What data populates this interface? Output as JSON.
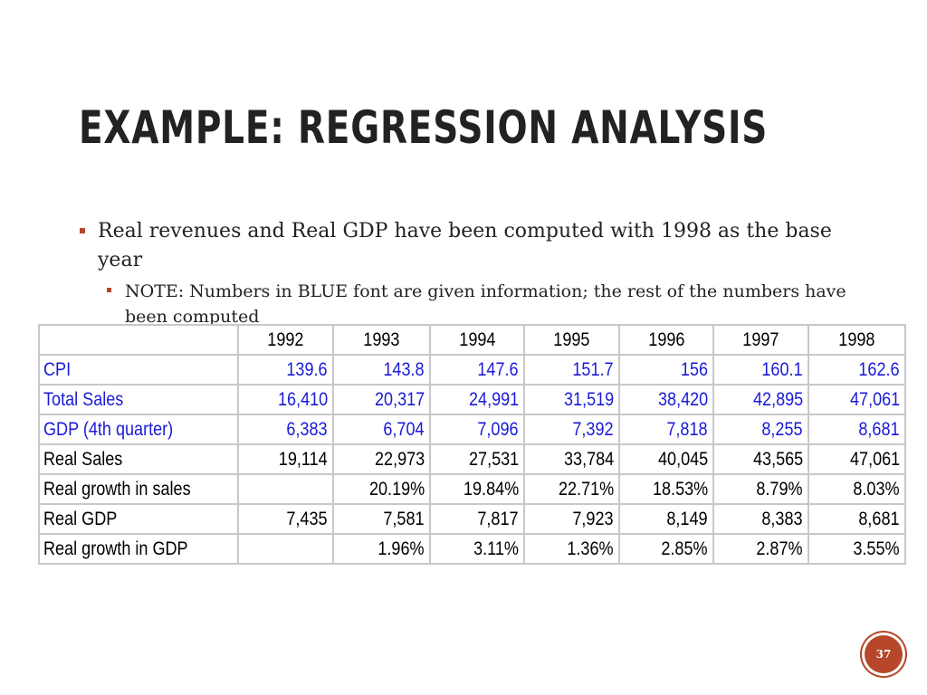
{
  "slide": {
    "title": "EXAMPLE: REGRESSION ANALYSIS",
    "page_number": "37",
    "accent_color": "#b7472a",
    "given_info_color": "#1a1ad8"
  },
  "bullets": {
    "main": "Real revenues and Real GDP have been computed with 1998 as the base year",
    "note": "NOTE: Numbers in BLUE font are given information; the rest of the numbers have been computed"
  },
  "table": {
    "corner": "",
    "years": [
      "1992",
      "1993",
      "1994",
      "1995",
      "1996",
      "1997",
      "1998"
    ],
    "rows": [
      {
        "label": "CPI",
        "given": true,
        "values": [
          "139.6",
          "143.8",
          "147.6",
          "151.7",
          "156",
          "160.1",
          "162.6"
        ]
      },
      {
        "label": "Total Sales",
        "given": true,
        "values": [
          "16,410",
          "20,317",
          "24,991",
          "31,519",
          "38,420",
          "42,895",
          "47,061"
        ]
      },
      {
        "label": "GDP (4th quarter)",
        "given": true,
        "values": [
          "6,383",
          "6,704",
          "7,096",
          "7,392",
          "7,818",
          "8,255",
          "8,681"
        ]
      },
      {
        "label": "Real Sales",
        "given": false,
        "values": [
          "19,114",
          "22,973",
          "27,531",
          "33,784",
          "40,045",
          "43,565",
          "47,061"
        ]
      },
      {
        "label": "Real growth in sales",
        "given": false,
        "values": [
          "",
          "20.19%",
          "19.84%",
          "22.71%",
          "18.53%",
          "8.79%",
          "8.03%"
        ]
      },
      {
        "label": "Real GDP",
        "given": false,
        "values": [
          "7,435",
          "7,581",
          "7,817",
          "7,923",
          "8,149",
          "8,383",
          "8,681"
        ]
      },
      {
        "label": "Real growth in GDP",
        "given": false,
        "values": [
          "",
          "1.96%",
          "3.11%",
          "1.36%",
          "2.85%",
          "2.87%",
          "3.55%"
        ]
      }
    ]
  }
}
